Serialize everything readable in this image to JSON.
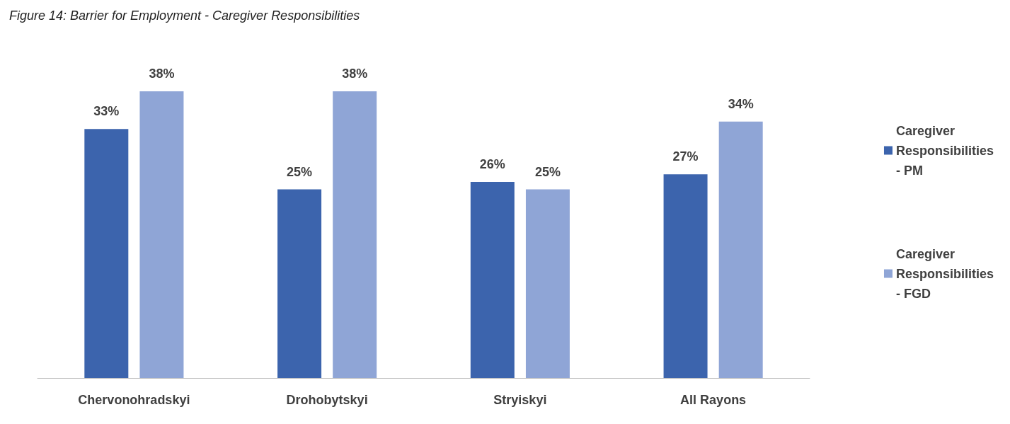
{
  "chart_data": {
    "type": "bar",
    "title": "Figure 14: Barrier for Employment - Caregiver Responsibilities",
    "categories": [
      "Chervonohradskyi",
      "Drohobytskyi",
      "Stryiskyi",
      "All Rayons"
    ],
    "series": [
      {
        "name": "Caregiver Responsibilities - PM",
        "color": "#3c64ad",
        "values": [
          33,
          25,
          26,
          27
        ],
        "value_labels": [
          "33%",
          "25%",
          "26%",
          "27%"
        ]
      },
      {
        "name": "Caregiver Responsibilities - FGD",
        "color": "#8fa5d6",
        "values": [
          38,
          38,
          25,
          34
        ],
        "value_labels": [
          "38%",
          "38%",
          "25%",
          "34%"
        ]
      }
    ],
    "legend": "right"
  }
}
